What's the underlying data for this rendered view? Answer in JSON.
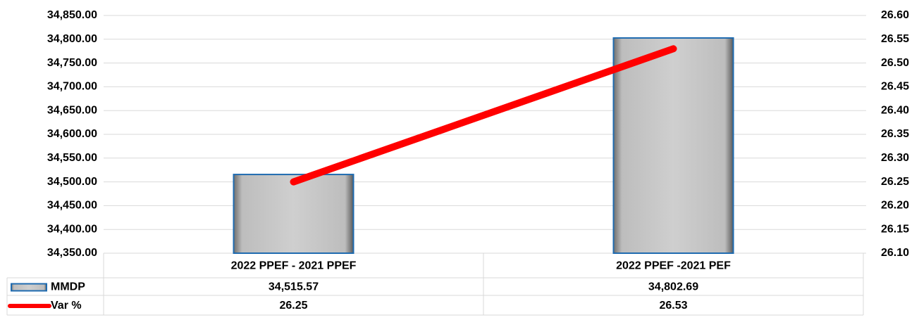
{
  "chart_data": {
    "type": "bar",
    "categories": [
      "2022 PPEF - 2021 PPEF",
      "2022 PPEF -2021 PEF"
    ],
    "series": [
      {
        "name": "MMDP",
        "type": "bar",
        "color": "#c8c8c8",
        "values": [
          34515.57,
          34802.69
        ],
        "value_labels": [
          "34,515.57",
          "34,802.69"
        ]
      },
      {
        "name": "Var %",
        "type": "line",
        "color": "#ff0000",
        "axis": "y2",
        "values": [
          26.25,
          26.53
        ]
      }
    ],
    "ylim": [
      34350,
      34850
    ],
    "yticks": [
      {
        "value": 34350,
        "label": "34,350.00"
      },
      {
        "value": 34400,
        "label": "34,400.00"
      },
      {
        "value": 34450,
        "label": "34,450.00"
      },
      {
        "value": 34500,
        "label": "34,500.00"
      },
      {
        "value": 34550,
        "label": "34,550.00"
      },
      {
        "value": 34600,
        "label": "34,600.00"
      },
      {
        "value": 34650,
        "label": "34,650.00"
      },
      {
        "value": 34700,
        "label": "34,700.00"
      },
      {
        "value": 34750,
        "label": "34,750.00"
      },
      {
        "value": 34800,
        "label": "34,800.00"
      },
      {
        "value": 34850,
        "label": "34,850.00"
      }
    ],
    "y2lim": [
      26.1,
      26.6
    ],
    "y2ticks": [
      {
        "value": 26.1,
        "label": "26.10"
      },
      {
        "value": 26.15,
        "label": "26.15"
      },
      {
        "value": 26.2,
        "label": "26.20"
      },
      {
        "value": 26.25,
        "label": "26.25"
      },
      {
        "value": 26.3,
        "label": "26.30"
      },
      {
        "value": 26.35,
        "label": "26.35"
      },
      {
        "value": 26.4,
        "label": "26.40"
      },
      {
        "value": 26.45,
        "label": "26.45"
      },
      {
        "value": 26.5,
        "label": "26.50"
      },
      {
        "value": 26.55,
        "label": "26.55"
      },
      {
        "value": 26.6,
        "label": "26.60"
      }
    ],
    "grid": true
  }
}
